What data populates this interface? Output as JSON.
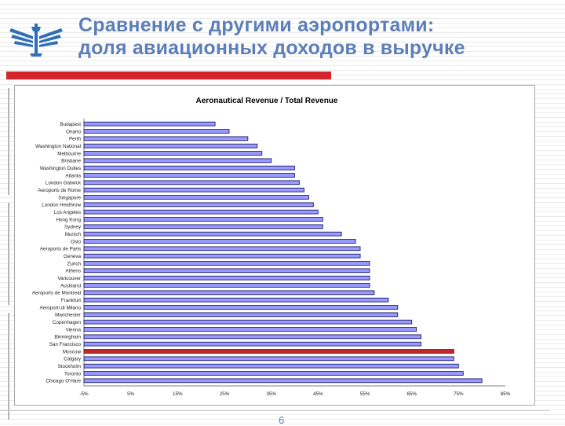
{
  "slide": {
    "title_line1": "Сравнение с другими аэропортами:",
    "title_line2": "доля авиационных доходов в выручке",
    "page_number": "6",
    "title_color": "#5d7fb8",
    "accent_color": "#d4252b"
  },
  "chart_data": {
    "type": "bar",
    "orientation": "horizontal",
    "title": "Aeronautical Revenue / Total Revenue",
    "categories": [
      "Budapest",
      "Oriario",
      "Perth",
      "Washington National",
      "Melbourne",
      "Brisbane",
      "Washington Dulles",
      "Atlanta",
      "London Gatwick",
      "Aeroports de Rome",
      "Singapore",
      "London Heathrow",
      "Los Angeles",
      "Hong Kong",
      "Sydney",
      "Munich",
      "Oslo",
      "Aeroports de Paris",
      "Geneva",
      "Zurich",
      "Athens",
      "Vancouver",
      "Auckland",
      "Aeroports de Montreal",
      "Frankfurt",
      "Aeroporti di Milano",
      "Manchester",
      "Copenhagen",
      "Vienna",
      "Birmingham",
      "San Francisco",
      "Moscow",
      "Calgary",
      "Stockholm",
      "Toronto",
      "Chicago O'Hare"
    ],
    "values": [
      23,
      26,
      30,
      32,
      33,
      35,
      40,
      40,
      41,
      42,
      43,
      44,
      45,
      46,
      46,
      50,
      53,
      54,
      54,
      56,
      56,
      56,
      56,
      57,
      60,
      62,
      62,
      65,
      66,
      67,
      67,
      74,
      74,
      75,
      76,
      80
    ],
    "highlight_category": "Moscow",
    "xlim": [
      -5,
      85
    ],
    "x_tick_labels": [
      "-5%",
      "5%",
      "15%",
      "25%",
      "35%",
      "45%",
      "55%",
      "65%",
      "75%",
      "85%"
    ],
    "bar_color": "#9999ff",
    "highlight_color": "#c0282d",
    "grid": false,
    "legend": "none"
  }
}
